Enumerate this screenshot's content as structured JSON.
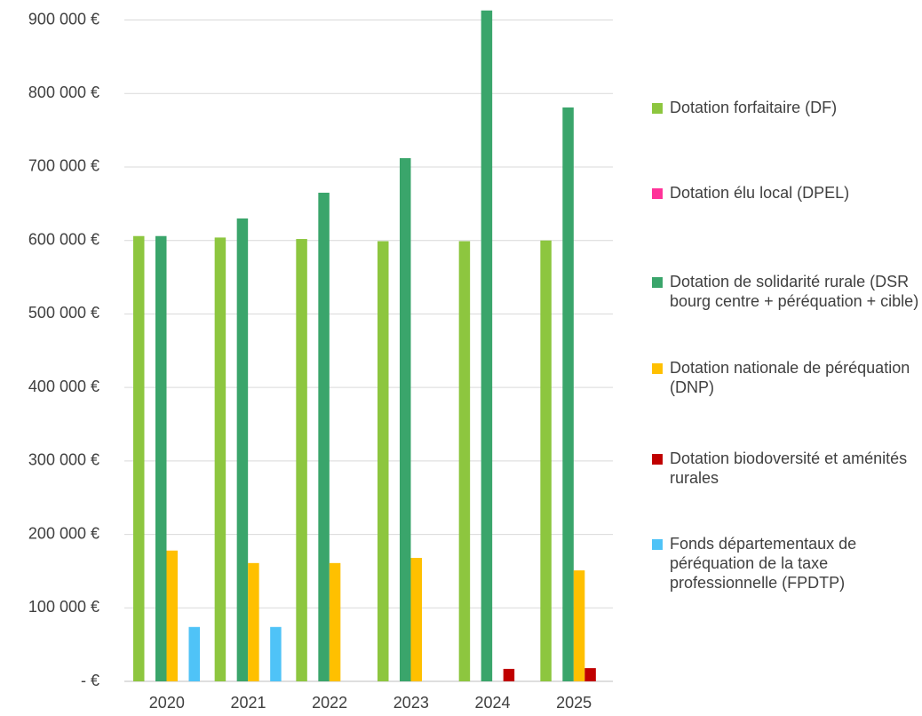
{
  "chart_data": {
    "type": "bar",
    "categories": [
      "2020",
      "2021",
      "2022",
      "2023",
      "2024",
      "2025"
    ],
    "series": [
      {
        "name": "Dotation forfaitaire (DF)",
        "color": "#8dc63f",
        "values": [
          606000,
          604000,
          602000,
          599000,
          599000,
          600000
        ]
      },
      {
        "name": "Dotation élu local (DPEL)",
        "color": "#ff3399",
        "values": [
          null,
          null,
          null,
          null,
          null,
          null
        ]
      },
      {
        "name": "Dotation de solidarité rurale (DSR bourg centre + péréquation + cible)",
        "color": "#3aa56b",
        "values": [
          606000,
          630000,
          665000,
          712000,
          913000,
          781000
        ]
      },
      {
        "name": "Dotation nationale de péréquation (DNP)",
        "color": "#ffc000",
        "values": [
          178000,
          161000,
          161000,
          168000,
          null,
          151000
        ]
      },
      {
        "name": "Dotation biodoversité et aménités rurales",
        "color": "#c00000",
        "values": [
          null,
          null,
          null,
          null,
          17000,
          18000
        ]
      },
      {
        "name": "Fonds départementaux de péréquation de la taxe professionnelle (FPDTP)",
        "color": "#4fc3f7",
        "values": [
          74000,
          74000,
          null,
          null,
          null,
          null
        ]
      }
    ],
    "ylim": [
      0,
      920000
    ],
    "yticks": [
      {
        "value": 0,
        "label": "-   €"
      },
      {
        "value": 100000,
        "label": "100 000 €"
      },
      {
        "value": 200000,
        "label": "200 000 €"
      },
      {
        "value": 300000,
        "label": "300 000 €"
      },
      {
        "value": 400000,
        "label": "400 000 €"
      },
      {
        "value": 500000,
        "label": "500 000 €"
      },
      {
        "value": 600000,
        "label": "600 000 €"
      },
      {
        "value": 700000,
        "label": "700 000 €"
      },
      {
        "value": 800000,
        "label": "800 000 €"
      },
      {
        "value": 900000,
        "label": "900 000 €"
      }
    ],
    "grid": true
  }
}
